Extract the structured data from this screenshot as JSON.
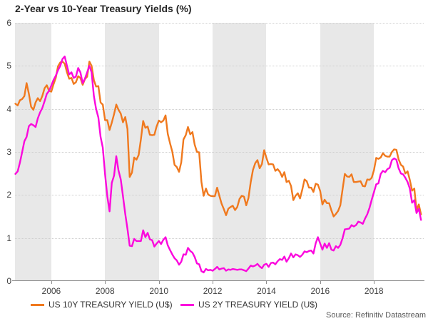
{
  "title": "2-Year vs 10-Year Treasury Yields (%)",
  "source": "Source: Refinitiv Datastream",
  "colors": {
    "series_10y": "#f0791e",
    "series_2y": "#fb08dd",
    "band": "#e8e8e8",
    "gridline": "#cfcfcf",
    "axis": "#8c8c8c",
    "title_text": "#262626",
    "tick_text": "#404040",
    "source_text": "#595959"
  },
  "legend": [
    {
      "label": "US 10Y TREASURY YIELD (U$)",
      "color_key": "series_10y"
    },
    {
      "label": "US 2Y TREASURY YIELD (U$)",
      "color_key": "series_2y"
    }
  ],
  "chart_data": {
    "type": "line",
    "title": "2-Year vs 10-Year Treasury Yields (%)",
    "xlabel": "",
    "ylabel": "",
    "x_range": [
      2004.65,
      2019.85
    ],
    "y_range": [
      0,
      6
    ],
    "x_ticks": [
      2006,
      2008,
      2010,
      2012,
      2014,
      2016,
      2018
    ],
    "y_ticks": [
      0,
      1,
      2,
      3,
      4,
      5,
      6
    ],
    "grid": "dotted-horizontal",
    "legend_position": "bottom-left",
    "background_bands_years": [
      [
        2004.65,
        2006
      ],
      [
        2008,
        2010
      ],
      [
        2012,
        2014
      ],
      [
        2016,
        2018
      ]
    ],
    "x_start": 2004.6667,
    "x_step_years": 0.083333,
    "series": [
      {
        "name": "US 10Y TREASURY YIELD (U$)",
        "color_key": "series_10y",
        "values": [
          4.12,
          4.08,
          4.2,
          4.23,
          4.3,
          4.6,
          4.35,
          4.05,
          3.98,
          4.15,
          4.25,
          4.18,
          4.3,
          4.48,
          4.55,
          4.42,
          4.4,
          4.57,
          4.72,
          4.99,
          5.08,
          5.1,
          5.05,
          4.85,
          4.7,
          4.72,
          4.58,
          4.62,
          4.76,
          4.72,
          4.56,
          4.69,
          4.75,
          5.1,
          5.0,
          4.67,
          4.52,
          4.53,
          4.15,
          4.1,
          3.74,
          3.74,
          3.51,
          3.68,
          3.88,
          4.1,
          3.98,
          3.89,
          3.69,
          3.81,
          3.53,
          2.42,
          2.52,
          2.87,
          2.82,
          2.93,
          3.29,
          3.72,
          3.56,
          3.59,
          3.4,
          3.39,
          3.4,
          3.59,
          3.73,
          3.69,
          3.73,
          3.85,
          3.42,
          3.2,
          3.01,
          2.7,
          2.65,
          2.54,
          2.76,
          3.29,
          3.39,
          3.58,
          3.41,
          3.46,
          3.17,
          3.0,
          2.99,
          2.3,
          1.98,
          2.15,
          2.01,
          1.98,
          1.97,
          1.97,
          2.17,
          1.98,
          1.8,
          1.67,
          1.53,
          1.68,
          1.72,
          1.75,
          1.65,
          1.72,
          1.91,
          1.98,
          1.96,
          1.76,
          1.93,
          2.3,
          2.58,
          2.74,
          2.81,
          2.62,
          2.72,
          3.04,
          2.86,
          2.71,
          2.72,
          2.71,
          2.56,
          2.6,
          2.54,
          2.42,
          2.53,
          2.3,
          2.33,
          2.21,
          1.88,
          1.98,
          2.04,
          1.92,
          2.12,
          2.36,
          2.32,
          2.17,
          2.17,
          2.07,
          2.26,
          2.24,
          2.09,
          1.78,
          1.89,
          1.81,
          1.81,
          1.64,
          1.5,
          1.56,
          1.63,
          1.76,
          2.14,
          2.49,
          2.43,
          2.42,
          2.48,
          2.3,
          2.3,
          2.31,
          2.32,
          2.21,
          2.2,
          2.36,
          2.35,
          2.4,
          2.58,
          2.86,
          2.84,
          2.87,
          2.97,
          2.91,
          2.89,
          2.89,
          3.0,
          3.06,
          3.05,
          2.83,
          2.7,
          2.66,
          2.5,
          2.55,
          2.35,
          2.1,
          2.15,
          1.65,
          1.78,
          1.55
        ]
      },
      {
        "name": "US 2Y TREASURY YIELD (U$)",
        "color_key": "series_2y",
        "values": [
          2.49,
          2.55,
          2.75,
          3.0,
          3.25,
          3.35,
          3.6,
          3.65,
          3.62,
          3.58,
          3.78,
          3.92,
          4.02,
          4.18,
          4.35,
          4.42,
          4.54,
          4.67,
          4.77,
          4.9,
          5.0,
          5.16,
          5.22,
          5.0,
          4.8,
          4.85,
          4.72,
          4.75,
          4.95,
          4.85,
          4.6,
          4.7,
          4.85,
          5.0,
          4.85,
          4.3,
          4.0,
          3.8,
          3.35,
          3.1,
          2.48,
          1.97,
          1.62,
          2.28,
          2.45,
          2.9,
          2.57,
          2.36,
          1.97,
          1.56,
          1.21,
          0.82,
          0.81,
          0.98,
          0.93,
          0.93,
          0.93,
          1.18,
          1.02,
          1.12,
          0.97,
          0.95,
          0.8,
          0.87,
          0.93,
          0.86,
          0.96,
          1.02,
          0.83,
          0.72,
          0.62,
          0.53,
          0.48,
          0.38,
          0.45,
          0.62,
          0.61,
          0.77,
          0.7,
          0.66,
          0.56,
          0.41,
          0.39,
          0.23,
          0.2,
          0.28,
          0.25,
          0.26,
          0.24,
          0.28,
          0.33,
          0.27,
          0.29,
          0.3,
          0.24,
          0.27,
          0.26,
          0.28,
          0.27,
          0.26,
          0.27,
          0.27,
          0.25,
          0.23,
          0.29,
          0.36,
          0.34,
          0.36,
          0.4,
          0.34,
          0.3,
          0.38,
          0.4,
          0.33,
          0.42,
          0.43,
          0.39,
          0.46,
          0.51,
          0.49,
          0.57,
          0.45,
          0.53,
          0.64,
          0.55,
          0.62,
          0.6,
          0.56,
          0.61,
          0.69,
          0.67,
          0.7,
          0.71,
          0.64,
          0.88,
          1.02,
          0.87,
          0.73,
          0.87,
          0.77,
          0.88,
          0.73,
          0.71,
          0.81,
          0.77,
          0.84,
          1.0,
          1.2,
          1.21,
          1.22,
          1.3,
          1.27,
          1.3,
          1.38,
          1.36,
          1.33,
          1.45,
          1.55,
          1.7,
          1.89,
          2.07,
          2.25,
          2.27,
          2.49,
          2.56,
          2.53,
          2.6,
          2.63,
          2.81,
          2.85,
          2.82,
          2.62,
          2.5,
          2.48,
          2.4,
          2.3,
          2.15,
          1.82,
          1.88,
          1.58,
          1.68,
          1.42
        ]
      }
    ]
  }
}
